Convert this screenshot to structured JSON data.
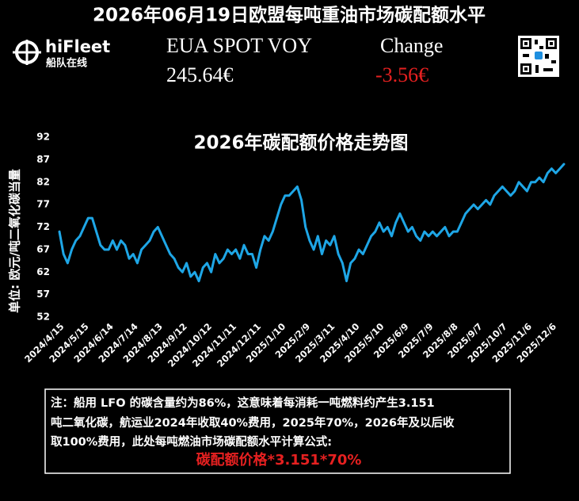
{
  "header": {
    "title": "2026年06月19日欧盟每吨重油市场碳配额水平",
    "brand": "hiFleet",
    "brand_sub": "船队在线",
    "price_label": "EUA SPOT VOY",
    "price": "245.64€",
    "change_label": "Change",
    "change": "-3.56€"
  },
  "chart_data": {
    "type": "line",
    "title": "2026年碳配额价格走势图",
    "y_label": "单位: 欧元/吨二氧化碳当量",
    "categories": [
      "2024/4/15",
      null,
      null,
      null,
      null,
      null,
      "2024/5/15",
      null,
      null,
      null,
      null,
      null,
      "2024/6/14",
      null,
      null,
      null,
      null,
      null,
      "2024/7/14",
      null,
      null,
      null,
      null,
      null,
      "2024/8/13",
      null,
      null,
      null,
      null,
      null,
      "2024/9/12",
      null,
      null,
      null,
      null,
      null,
      "2024/10/12",
      null,
      null,
      null,
      null,
      null,
      "2024/11/11",
      null,
      null,
      null,
      null,
      null,
      "2024/12/11",
      null,
      null,
      null,
      null,
      null,
      "2025/1/10",
      null,
      null,
      null,
      null,
      null,
      "2025/2/9",
      null,
      null,
      null,
      null,
      null,
      "2025/3/11",
      null,
      null,
      null,
      null,
      null,
      "2025/4/10",
      null,
      null,
      null,
      null,
      null,
      "2025/5/10",
      null,
      null,
      null,
      null,
      null,
      "2025/6/9",
      null,
      null,
      null,
      null,
      null,
      "2025/7/9",
      null,
      null,
      null,
      null,
      null,
      "2025/8/8",
      null,
      null,
      null,
      null,
      null,
      "2025/9/7",
      null,
      null,
      null,
      null,
      null,
      "2025/10/7",
      null,
      null,
      null,
      null,
      null,
      "2025/11/6",
      null,
      null,
      null,
      null,
      null,
      "2025/12/6",
      null,
      null,
      null
    ],
    "series": [
      {
        "color": "#1ea6e6",
        "values": [
          71,
          66,
          64,
          67,
          69,
          70,
          72,
          74,
          74,
          71,
          68,
          67,
          67,
          69,
          67,
          69,
          68,
          65,
          66,
          64,
          67,
          68,
          69,
          71,
          72,
          70,
          68,
          66,
          65,
          63,
          62,
          64,
          61,
          62,
          60,
          63,
          64,
          62,
          66,
          64,
          65,
          67,
          66,
          67,
          65,
          68,
          66,
          66,
          63,
          67,
          70,
          69,
          71,
          74,
          77,
          79,
          79,
          80,
          81,
          78,
          72,
          69,
          67,
          70,
          66,
          69,
          68,
          70,
          66,
          64,
          60,
          64,
          65,
          67,
          66,
          68,
          70,
          71,
          73,
          71,
          72,
          70,
          73,
          75,
          73,
          71,
          72,
          70,
          69,
          71,
          70,
          71,
          70,
          71,
          72,
          70,
          71,
          71,
          73,
          75,
          76,
          77,
          76,
          77,
          78,
          77,
          79,
          80,
          81,
          80,
          79,
          80,
          82,
          81,
          80,
          82,
          82,
          83,
          82,
          84,
          85,
          84,
          85,
          86
        ]
      }
    ],
    "ylim": [
      52,
      92
    ],
    "yticks": [
      52,
      57,
      62,
      67,
      72,
      77,
      82,
      87,
      92
    ],
    "grid": false
  },
  "note": {
    "lines": [
      "注：船用 LFO 的碳含量约为86%，这意味着每消耗一吨燃料约产生3.151",
      "吨二氧化碳，航运业2024年收取40%费用，2025年70%，2026年及以后收",
      "取100%费用，此处每吨燃油市场碳配额水平计算公式:"
    ],
    "formula": "碳配额价格*3.151*70%"
  }
}
